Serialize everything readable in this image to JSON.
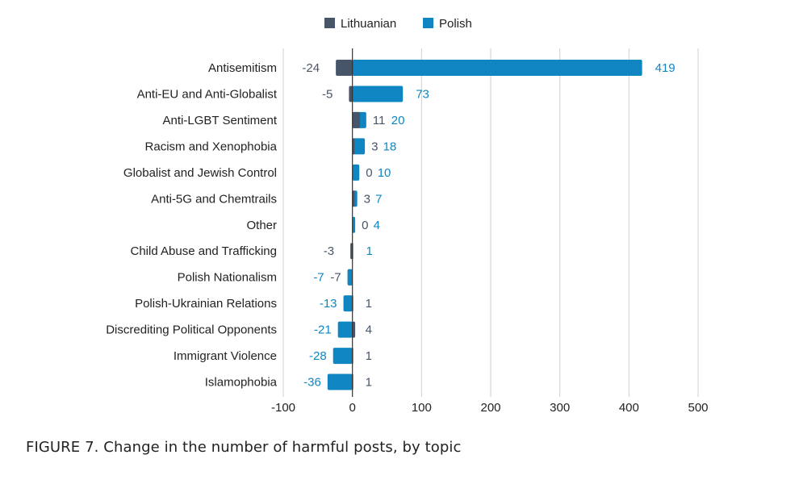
{
  "caption": "FIGURE 7. Change in the number of harmful posts, by topic",
  "chart_data": {
    "type": "bar",
    "orientation": "horizontal",
    "layout": "overlapping",
    "categories": [
      "Antisemitism",
      "Anti-EU and Anti-Globalist",
      "Anti-LGBT Sentiment",
      "Racism and Xenophobia",
      "Globalist and Jewish Control",
      "Anti-5G and Chemtrails",
      "Other",
      "Child Abuse and Trafficking",
      "Polish Nationalism",
      "Polish-Ukrainian Relations",
      "Discrediting Political Opponents",
      "Immigrant Violence",
      "Islamophobia"
    ],
    "series": [
      {
        "name": "Lithuanian",
        "color": "#475569",
        "values": [
          -24,
          -5,
          11,
          3,
          0,
          3,
          0,
          -3,
          -7,
          1,
          4,
          1,
          1
        ]
      },
      {
        "name": "Polish",
        "color": "#0f86c2",
        "values": [
          419,
          73,
          20,
          18,
          10,
          7,
          4,
          1,
          -7,
          -13,
          -21,
          -28,
          -36
        ]
      }
    ],
    "data_labels": {
      "Lithuanian": [
        "-24",
        "-5",
        "11",
        "3",
        "0",
        "3",
        "0",
        "-3",
        "-7",
        "1",
        "4",
        "1",
        "1"
      ],
      "Polish": [
        "419",
        "73",
        "20",
        "18",
        "10",
        "7",
        "4",
        "1",
        "-7",
        "-13",
        "-21",
        "-28",
        "-36"
      ]
    },
    "xlim": [
      -100,
      500
    ],
    "xticks": [
      -100,
      0,
      100,
      200,
      300,
      400,
      500
    ],
    "xtick_labels": [
      "-100",
      "0",
      "100",
      "200",
      "300",
      "400",
      "500"
    ],
    "grid": "vertical",
    "legend_position": "top-center",
    "title": "",
    "xlabel": "",
    "ylabel": ""
  }
}
